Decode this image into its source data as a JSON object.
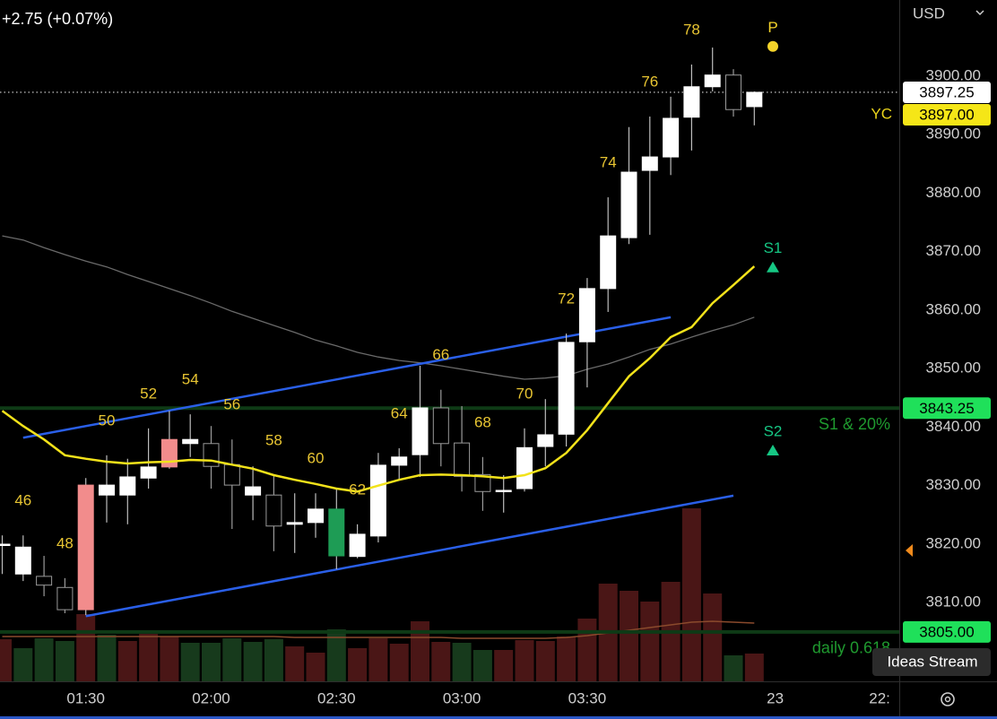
{
  "header": {
    "change": "+2.75 (+0.07%)"
  },
  "ui": {
    "tooltip": "Ideas Stream"
  },
  "chart_data": {
    "type": "candlestick",
    "currency": "USD",
    "categories": [
      null,
      null,
      null,
      null,
      "01:30",
      null,
      null,
      null,
      null,
      null,
      "02:00",
      null,
      null,
      null,
      null,
      null,
      "02:30",
      null,
      null,
      null,
      null,
      null,
      "03:00",
      null,
      null,
      null,
      null,
      null,
      "03:30",
      null,
      null,
      null,
      null,
      null,
      null,
      null,
      null,
      "23",
      null,
      null,
      null,
      null,
      "22:"
    ],
    "open": [
      3819.8,
      3814.9,
      3814.5,
      3812.6,
      3808.8,
      3828.4,
      3828.4,
      3831.3,
      3833.2,
      3837.2,
      3837.2,
      3833.6,
      3828.4,
      3828.4,
      3823.4,
      3823.7,
      3826.0,
      3817.9,
      3821.4,
      3833.5,
      3835.3,
      3843.3,
      3837.3,
      3831.9,
      3829.0,
      3829.5,
      3836.7,
      3838.8,
      3854.6,
      3863.7,
      3872.4,
      3883.9,
      3886.2,
      3893.0,
      3898.2,
      3900.2,
      3894.8,
      null,
      null,
      null,
      null,
      null,
      null
    ],
    "high": [
      3821.5,
      3821.5,
      3818.0,
      3814.2,
      3831.3,
      3835.2,
      3834.6,
      3839.8,
      3842.8,
      3842.2,
      3840.2,
      3837.9,
      3833.3,
      3831.8,
      3828.7,
      3828.7,
      3829.5,
      3823.4,
      3835.6,
      3836.4,
      3850.5,
      3846.4,
      3843.6,
      3834.9,
      3831.8,
      3839.8,
      3844.8,
      3856.0,
      3865.5,
      3879.3,
      3891.3,
      3893.1,
      3896.5,
      3902.0,
      3904.9,
      3901.2,
      3897.4,
      null,
      null,
      null,
      null,
      null,
      null
    ],
    "low": [
      3814.9,
      3813.7,
      3811.1,
      3808.2,
      3807.9,
      3823.7,
      3823.4,
      3829.5,
      3832.9,
      3834.9,
      3829.5,
      3822.6,
      3824.1,
      3818.8,
      3818.5,
      3821.1,
      3815.7,
      3817.6,
      3820.3,
      3831.0,
      3831.5,
      3833.3,
      3829.0,
      3825.7,
      3825.4,
      3829.0,
      3833.3,
      3836.7,
      3846.8,
      3859.7,
      3871.3,
      3872.9,
      3883.1,
      3887.3,
      3897.4,
      3893.1,
      3891.6,
      null,
      null,
      null,
      null,
      null,
      null
    ],
    "close": [
      3820.0,
      3819.5,
      3813.0,
      3808.8,
      3830.1,
      3830.1,
      3831.5,
      3833.2,
      3837.9,
      3837.9,
      3833.3,
      3830.1,
      3829.8,
      3823.1,
      3823.7,
      3826.0,
      3818.0,
      3821.7,
      3833.5,
      3834.9,
      3843.3,
      3837.2,
      3831.6,
      3829.0,
      3829.2,
      3836.5,
      3838.7,
      3854.5,
      3863.7,
      3872.7,
      3883.6,
      3886.2,
      3892.8,
      3898.2,
      3900.2,
      3894.3,
      3897.25,
      null,
      null,
      null,
      null,
      null,
      null
    ],
    "colors": [
      "#ffffff",
      "#ffffff",
      "#000000",
      "#000000",
      "#f28c8c",
      "#ffffff",
      "#ffffff",
      "#ffffff",
      "#f28c8c",
      "#ffffff",
      "#000000",
      "#000000",
      "#ffffff",
      "#000000",
      "#ffffff",
      "#ffffff",
      "#1e9c55",
      "#ffffff",
      "#ffffff",
      "#ffffff",
      "#ffffff",
      "#000000",
      "#000000",
      "#000000",
      "#ffffff",
      "#ffffff",
      "#ffffff",
      "#ffffff",
      "#ffffff",
      "#ffffff",
      "#ffffff",
      "#ffffff",
      "#ffffff",
      "#ffffff",
      "#ffffff",
      "#000000",
      "#ffffff",
      null,
      null,
      null,
      null,
      null,
      null
    ],
    "bar_numbers": [
      null,
      46,
      null,
      48,
      null,
      50,
      null,
      52,
      null,
      54,
      null,
      56,
      null,
      58,
      null,
      60,
      null,
      62,
      null,
      64,
      null,
      66,
      null,
      68,
      null,
      70,
      null,
      72,
      null,
      74,
      null,
      76,
      null,
      78,
      null,
      null,
      null,
      null,
      null,
      null,
      null,
      null,
      null
    ],
    "ema": {
      "color": "#f2e21a",
      "values": [
        3842.8,
        3840.2,
        3837.9,
        3835.2,
        3834.6,
        3834.1,
        3833.8,
        3834.0,
        3834.1,
        3834.4,
        3834.3,
        3833.6,
        3832.9,
        3831.8,
        3831.0,
        3830.3,
        3829.5,
        3829.0,
        3830.0,
        3831.0,
        3831.8,
        3831.9,
        3831.8,
        3831.6,
        3831.3,
        3831.8,
        3833.0,
        3835.6,
        3839.5,
        3844.1,
        3848.7,
        3851.8,
        3855.4,
        3857.1,
        3861.2,
        3864.3,
        3867.5,
        null,
        null,
        null,
        null,
        null,
        null
      ]
    },
    "sma": {
      "color": "#6a6a6a",
      "values": [
        3872.7,
        3872.0,
        3870.7,
        3869.5,
        3868.4,
        3867.4,
        3866.1,
        3864.9,
        3863.7,
        3862.5,
        3861.2,
        3859.8,
        3858.6,
        3857.4,
        3856.2,
        3854.9,
        3853.9,
        3852.8,
        3852.0,
        3851.4,
        3851.0,
        3850.5,
        3849.9,
        3849.3,
        3848.7,
        3848.2,
        3848.4,
        3848.8,
        3849.9,
        3850.8,
        3852.0,
        3853.3,
        3854.2,
        3855.4,
        3856.5,
        3857.5,
        3858.8,
        null,
        null,
        null,
        null,
        null,
        null
      ]
    },
    "volume": {
      "vlim": [
        0,
        380
      ],
      "values": [
        47,
        37,
        48,
        45,
        75,
        52,
        45,
        53,
        50,
        43,
        43,
        48,
        44,
        47,
        39,
        32,
        58,
        37,
        48,
        42,
        67,
        44,
        43,
        35,
        35,
        46,
        45,
        50,
        70,
        109,
        101,
        89,
        111,
        193,
        98,
        29,
        31,
        null,
        null,
        null,
        null,
        null,
        null
      ],
      "colors": [
        "#4a1616",
        "#173a1c",
        "#173a1c",
        "#173a1c",
        "#4a1616",
        "#173a1c",
        "#4a1616",
        "#4a1616",
        "#4a1616",
        "#173a1c",
        "#173a1c",
        "#173a1c",
        "#173a1c",
        "#173a1c",
        "#4a1616",
        "#4a1616",
        "#173a1c",
        "#4a1616",
        "#4a1616",
        "#4a1616",
        "#4a1616",
        "#4a1616",
        "#173a1c",
        "#173a1c",
        "#4a1616",
        "#4a1616",
        "#4a1616",
        "#4a1616",
        "#4a1616",
        "#4a1616",
        "#4a1616",
        "#4a1616",
        "#4a1616",
        "#4a1616",
        "#4a1616",
        "#173a1c",
        "#4a1616",
        null,
        null,
        null,
        null,
        null,
        null
      ],
      "ma": {
        "color": "#8a4a2c",
        "values": [
          50,
          50,
          50,
          50,
          50,
          50,
          50,
          50,
          50,
          50,
          50,
          50,
          50,
          50,
          49,
          49,
          49,
          49,
          49,
          49,
          49,
          49,
          48,
          48,
          48,
          48,
          48,
          49,
          51,
          54,
          57,
          60,
          63,
          66,
          67,
          66,
          65,
          null,
          null,
          null,
          null,
          null,
          null
        ]
      }
    },
    "trendlines": [
      {
        "color": "#2a5fe8",
        "from": 1,
        "to": 32,
        "values": [
          3838.2,
          3858.8
        ]
      },
      {
        "color": "#2a5fe8",
        "from": 4,
        "to": 35,
        "values": [
          3807.7,
          3828.3
        ]
      }
    ],
    "levels": [
      {
        "value": 3897.25,
        "color": "#d9d9d9",
        "style": "dotted"
      },
      {
        "value": 3843.25,
        "color": "#0e3a16",
        "label": "S1 & 20%",
        "label_color": "#1f9a2f"
      },
      {
        "value": 3805,
        "color": "#0e3a16",
        "label": "daily 0.618",
        "label_color": "#1f9a2f"
      }
    ],
    "price_tags": [
      {
        "value": 3897.25,
        "color": "#ffffff"
      },
      {
        "value": 3897,
        "label": "3897.00",
        "color": "#f5e617",
        "note": "YC",
        "note_color": "#e8d21b"
      },
      {
        "value": 3843.25,
        "color": "#1fe05a"
      },
      {
        "value": 3805,
        "label": "3805.00",
        "color": "#1fe05a"
      }
    ],
    "markers": [
      {
        "label": "P",
        "value": 3905.1,
        "shape": "dot",
        "color": "#f5d42a"
      },
      {
        "label": "S1",
        "value": 3867.4,
        "shape": "triangle",
        "color": "#16c784"
      },
      {
        "label": "S2",
        "value": 3836.1,
        "shape": "triangle",
        "color": "#16c784"
      }
    ],
    "ylim": [
      3796.55,
      3913.03
    ],
    "yticks": [
      {
        "value": 3810,
        "label": "3810.00"
      },
      {
        "value": 3820,
        "label": "3820.00"
      },
      {
        "value": 3830,
        "label": "3830.00"
      },
      {
        "value": 3840,
        "label": "3840.00"
      },
      {
        "value": 3850,
        "label": "3850.00"
      },
      {
        "value": 3860,
        "label": "3860.00"
      },
      {
        "value": 3870,
        "label": "3870.00"
      },
      {
        "value": 3880,
        "label": "3880.00"
      },
      {
        "value": 3890,
        "label": "3890.00"
      },
      {
        "value": 3900,
        "label": "3900.00"
      }
    ]
  }
}
